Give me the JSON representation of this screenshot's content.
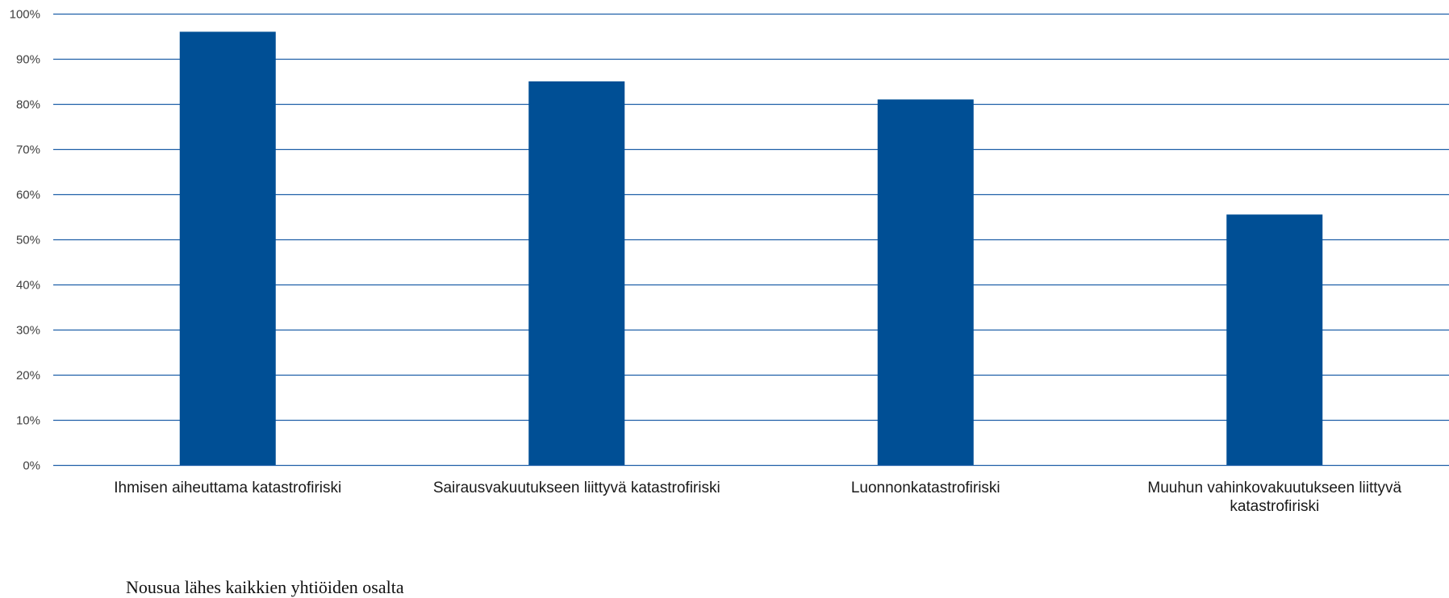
{
  "chart_data": {
    "type": "bar",
    "categories": [
      [
        "Ihmisen aiheuttama katastrofiriski"
      ],
      [
        "Sairausvakuutukseen liittyvä katastrofiriski"
      ],
      [
        "Luonnonkatastrofiriski"
      ],
      [
        "Muuhun vahinkovakuutukseen liittyvä",
        "katastrofiriski"
      ]
    ],
    "values": [
      96,
      85,
      81,
      55.5
    ],
    "ylim": [
      0,
      100
    ],
    "yticks": [
      0,
      10,
      20,
      30,
      40,
      50,
      60,
      70,
      80,
      90,
      100
    ],
    "ytick_labels": [
      "0%",
      "10%",
      "20%",
      "30%",
      "40%",
      "50%",
      "60%",
      "70%",
      "80%",
      "90%",
      "100%"
    ],
    "grid": true,
    "colors": {
      "bar": "#004F95",
      "grid": "#1F5FA8",
      "axis": "#1F5FA8"
    }
  },
  "footnote": "Nousua lähes kaikkien yhtiöiden osalta"
}
